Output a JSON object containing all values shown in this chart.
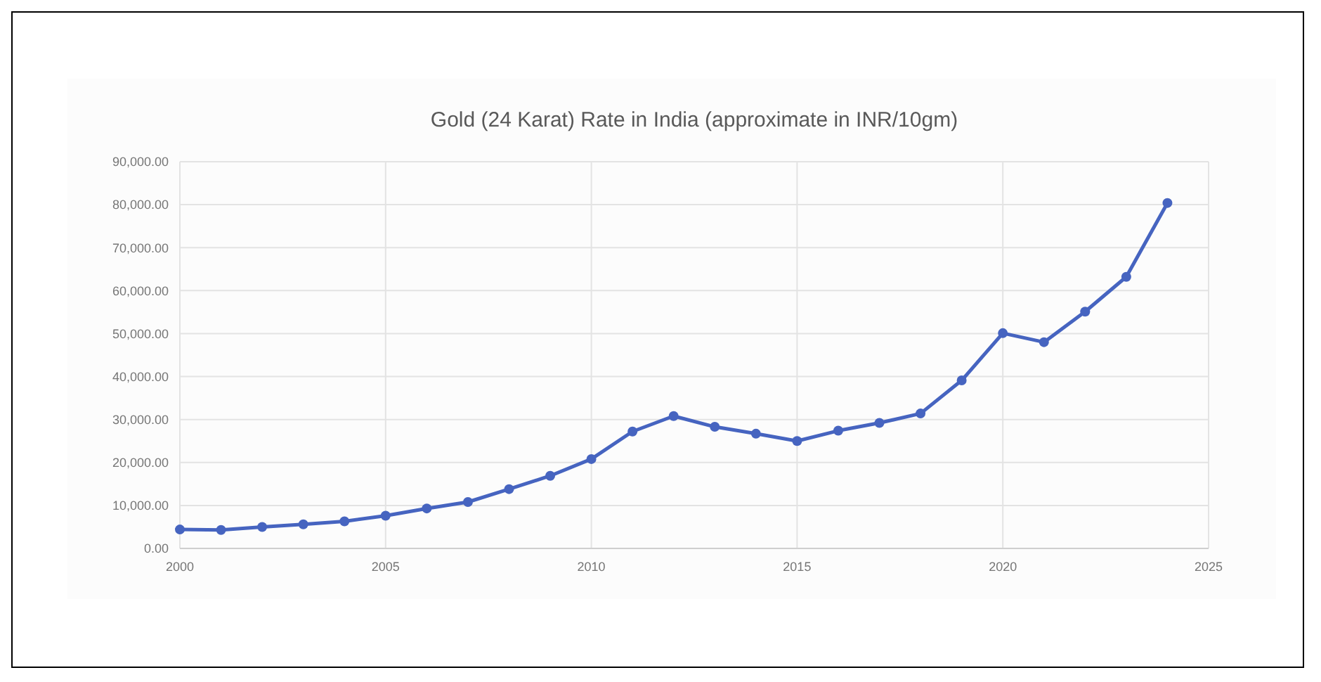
{
  "chart_data": {
    "type": "line",
    "title": "Gold (24 Karat) Rate in India (approximate in INR/10gm)",
    "x": [
      2000,
      2001,
      2002,
      2003,
      2004,
      2005,
      2006,
      2007,
      2008,
      2009,
      2010,
      2011,
      2012,
      2013,
      2014,
      2015,
      2016,
      2017,
      2018,
      2019,
      2020,
      2021,
      2022,
      2023,
      2024
    ],
    "series": [
      {
        "color": "#4664c0",
        "values": [
          4400,
          4300,
          5000,
          5600,
          6300,
          7600,
          9300,
          10800,
          13800,
          16900,
          20800,
          27200,
          30800,
          28300,
          26700,
          25000,
          27400,
          29200,
          31400,
          39100,
          50100,
          48000,
          55100,
          63200,
          80400
        ]
      }
    ],
    "xlim": [
      2000,
      2025
    ],
    "xticks": [
      2000,
      2005,
      2010,
      2015,
      2020,
      2025
    ],
    "ylim": [
      0,
      90000
    ],
    "yticks": [
      {
        "value": 0,
        "label": "0.00"
      },
      {
        "value": 10000,
        "label": "10,000.00"
      },
      {
        "value": 20000,
        "label": "20,000.00"
      },
      {
        "value": 30000,
        "label": "30,000.00"
      },
      {
        "value": 40000,
        "label": "40,000.00"
      },
      {
        "value": 50000,
        "label": "50,000.00"
      },
      {
        "value": 60000,
        "label": "60,000.00"
      },
      {
        "value": 70000,
        "label": "70,000.00"
      },
      {
        "value": 80000,
        "label": "80,000.00"
      },
      {
        "value": 90000,
        "label": "90,000.00"
      }
    ],
    "grid": true,
    "marker": "circle",
    "line_style": "solid"
  }
}
